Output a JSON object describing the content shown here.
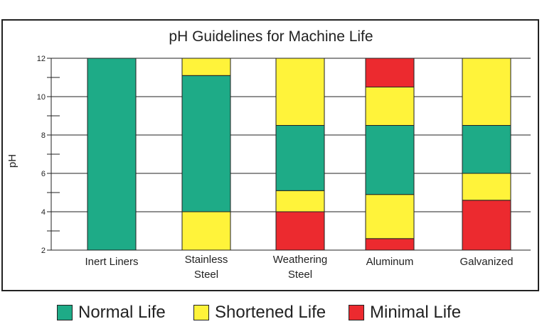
{
  "chart_data": {
    "type": "bar",
    "stacked": true,
    "title": "pH Guidelines for Machine Life",
    "ylabel": "pH",
    "xlabel": "",
    "ylim": [
      2,
      12
    ],
    "yticks": [
      2,
      4,
      6,
      8,
      10,
      12
    ],
    "grid": true,
    "legend_position": "bottom",
    "categories": [
      {
        "label_lines": [
          "Inert Liners"
        ]
      },
      {
        "label_lines": [
          "Stainless",
          "Steel"
        ]
      },
      {
        "label_lines": [
          "Weathering",
          "Steel"
        ]
      },
      {
        "label_lines": [
          "Aluminum"
        ]
      },
      {
        "label_lines": [
          "Galvanized"
        ]
      }
    ],
    "bars": [
      [
        {
          "from": 2,
          "to": 12,
          "level": "normal"
        }
      ],
      [
        {
          "from": 2,
          "to": 4,
          "level": "shortened"
        },
        {
          "from": 4,
          "to": 11.1,
          "level": "normal"
        },
        {
          "from": 11.1,
          "to": 12,
          "level": "shortened"
        }
      ],
      [
        {
          "from": 2,
          "to": 4,
          "level": "minimal"
        },
        {
          "from": 4,
          "to": 5.1,
          "level": "shortened"
        },
        {
          "from": 5.1,
          "to": 8.5,
          "level": "normal"
        },
        {
          "from": 8.5,
          "to": 12,
          "level": "shortened"
        }
      ],
      [
        {
          "from": 2,
          "to": 2.6,
          "level": "minimal"
        },
        {
          "from": 2.6,
          "to": 4.9,
          "level": "shortened"
        },
        {
          "from": 4.9,
          "to": 8.5,
          "level": "normal"
        },
        {
          "from": 8.5,
          "to": 10.5,
          "level": "shortened"
        },
        {
          "from": 10.5,
          "to": 12,
          "level": "minimal"
        }
      ],
      [
        {
          "from": 2,
          "to": 4.6,
          "level": "minimal"
        },
        {
          "from": 4.6,
          "to": 6,
          "level": "shortened"
        },
        {
          "from": 6,
          "to": 8.5,
          "level": "normal"
        },
        {
          "from": 8.5,
          "to": 12,
          "level": "shortened"
        }
      ]
    ],
    "legend": [
      {
        "key": "normal",
        "label": "Normal Life",
        "color": "#1eab87"
      },
      {
        "key": "shortened",
        "label": "Shortened Life",
        "color": "#fff33a"
      },
      {
        "key": "minimal",
        "label": "Minimal Life",
        "color": "#ec2a2f"
      }
    ]
  }
}
